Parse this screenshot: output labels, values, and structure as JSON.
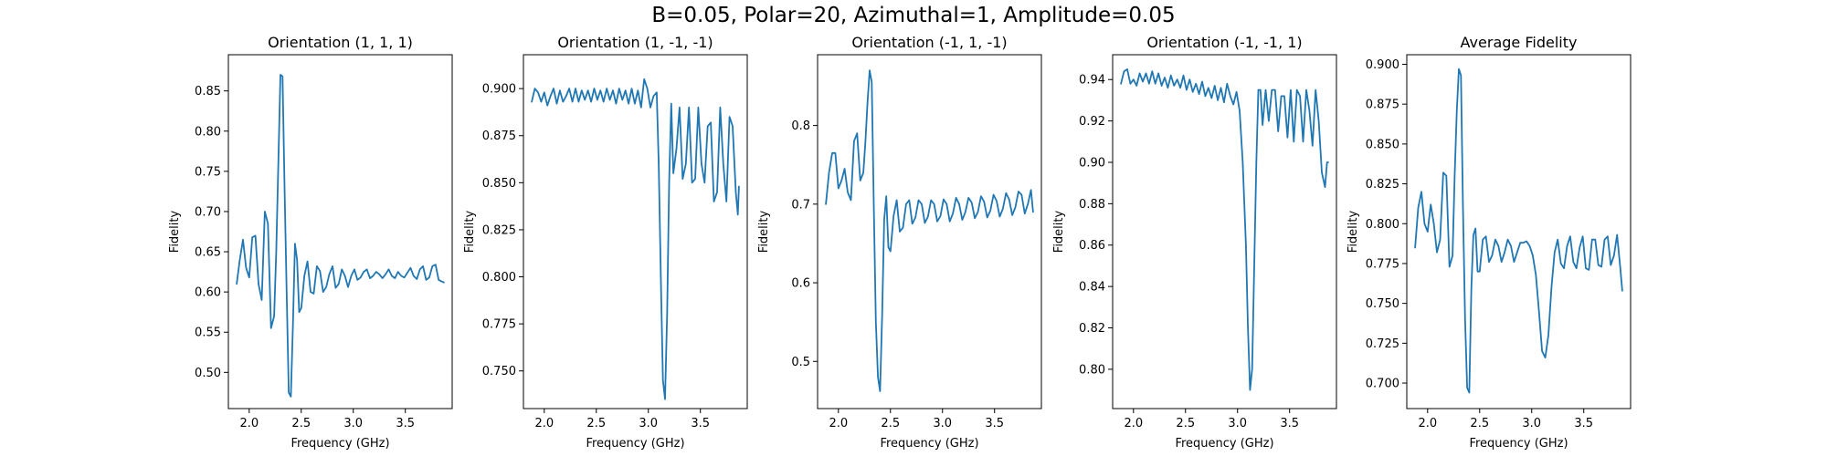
{
  "figure": {
    "suptitle": "B=0.05, Polar=20, Azimuthal=1, Amplitude=0.05",
    "line_color": "#1f77b4"
  },
  "chart_data": [
    {
      "type": "line",
      "title": "Orientation (1, 1, 1)",
      "xlabel": "Frequency (GHz)",
      "ylabel": "Fidelity",
      "xlim": [
        1.8,
        3.95
      ],
      "ylim": [
        0.455,
        0.895
      ],
      "xticks": [
        2.0,
        2.5,
        3.0,
        3.5
      ],
      "yticks": [
        0.5,
        0.55,
        0.6,
        0.65,
        0.7,
        0.75,
        0.8,
        0.85
      ],
      "tick_decimals": 2,
      "series": [
        {
          "x": [
            1.88,
            1.91,
            1.94,
            1.97,
            2.0,
            2.03,
            2.06,
            2.09,
            2.12,
            2.15,
            2.18,
            2.21,
            2.24,
            2.26,
            2.28,
            2.3,
            2.32,
            2.34,
            2.36,
            2.38,
            2.4,
            2.42,
            2.44,
            2.46,
            2.48,
            2.5,
            2.53,
            2.56,
            2.59,
            2.62,
            2.65,
            2.68,
            2.71,
            2.74,
            2.77,
            2.8,
            2.83,
            2.86,
            2.89,
            2.92,
            2.95,
            2.98,
            3.01,
            3.04,
            3.07,
            3.1,
            3.13,
            3.16,
            3.19,
            3.22,
            3.25,
            3.28,
            3.31,
            3.34,
            3.37,
            3.4,
            3.43,
            3.46,
            3.49,
            3.52,
            3.55,
            3.58,
            3.61,
            3.64,
            3.67,
            3.7,
            3.73,
            3.76,
            3.79,
            3.82,
            3.85,
            3.87
          ],
          "y": [
            0.61,
            0.64,
            0.665,
            0.63,
            0.618,
            0.668,
            0.67,
            0.61,
            0.59,
            0.7,
            0.685,
            0.555,
            0.57,
            0.65,
            0.76,
            0.87,
            0.868,
            0.73,
            0.6,
            0.475,
            0.47,
            0.56,
            0.66,
            0.64,
            0.575,
            0.58,
            0.62,
            0.638,
            0.6,
            0.598,
            0.632,
            0.626,
            0.6,
            0.606,
            0.622,
            0.632,
            0.605,
            0.61,
            0.628,
            0.62,
            0.606,
            0.62,
            0.628,
            0.615,
            0.618,
            0.625,
            0.628,
            0.617,
            0.62,
            0.625,
            0.622,
            0.617,
            0.622,
            0.628,
            0.62,
            0.617,
            0.625,
            0.62,
            0.618,
            0.624,
            0.63,
            0.62,
            0.616,
            0.628,
            0.632,
            0.615,
            0.618,
            0.632,
            0.634,
            0.615,
            0.613,
            0.612
          ]
        }
      ]
    },
    {
      "type": "line",
      "title": "Orientation (1, -1, -1)",
      "xlabel": "Frequency (GHz)",
      "ylabel": "Fidelity",
      "xlim": [
        1.8,
        3.95
      ],
      "ylim": [
        0.73,
        0.918
      ],
      "xticks": [
        2.0,
        2.5,
        3.0,
        3.5
      ],
      "yticks": [
        0.75,
        0.775,
        0.8,
        0.825,
        0.85,
        0.875,
        0.9
      ],
      "tick_decimals": 3,
      "series": [
        {
          "x": [
            1.88,
            1.91,
            1.94,
            1.97,
            2.0,
            2.03,
            2.06,
            2.09,
            2.12,
            2.15,
            2.18,
            2.21,
            2.24,
            2.27,
            2.3,
            2.33,
            2.36,
            2.39,
            2.42,
            2.45,
            2.48,
            2.51,
            2.54,
            2.57,
            2.6,
            2.63,
            2.66,
            2.69,
            2.72,
            2.75,
            2.78,
            2.81,
            2.84,
            2.87,
            2.9,
            2.93,
            2.96,
            2.99,
            3.02,
            3.05,
            3.08,
            3.1,
            3.12,
            3.14,
            3.16,
            3.18,
            3.2,
            3.22,
            3.24,
            3.27,
            3.3,
            3.33,
            3.36,
            3.39,
            3.42,
            3.45,
            3.48,
            3.51,
            3.54,
            3.57,
            3.6,
            3.63,
            3.66,
            3.69,
            3.72,
            3.75,
            3.78,
            3.81,
            3.84,
            3.86,
            3.87
          ],
          "y": [
            0.893,
            0.9,
            0.898,
            0.893,
            0.898,
            0.891,
            0.896,
            0.9,
            0.892,
            0.899,
            0.893,
            0.896,
            0.9,
            0.893,
            0.9,
            0.893,
            0.899,
            0.894,
            0.899,
            0.893,
            0.9,
            0.894,
            0.899,
            0.893,
            0.9,
            0.894,
            0.899,
            0.892,
            0.9,
            0.894,
            0.899,
            0.892,
            0.9,
            0.892,
            0.899,
            0.89,
            0.905,
            0.9,
            0.89,
            0.896,
            0.898,
            0.86,
            0.8,
            0.745,
            0.735,
            0.78,
            0.85,
            0.892,
            0.855,
            0.868,
            0.89,
            0.852,
            0.86,
            0.89,
            0.85,
            0.852,
            0.89,
            0.86,
            0.85,
            0.88,
            0.882,
            0.84,
            0.845,
            0.89,
            0.86,
            0.84,
            0.885,
            0.88,
            0.845,
            0.833,
            0.848
          ]
        }
      ]
    },
    {
      "type": "line",
      "title": "Orientation (-1, 1, -1)",
      "xlabel": "Frequency (GHz)",
      "ylabel": "Fidelity",
      "xlim": [
        1.8,
        3.95
      ],
      "ylim": [
        0.44,
        0.89
      ],
      "xticks": [
        2.0,
        2.5,
        3.0,
        3.5
      ],
      "yticks": [
        0.5,
        0.6,
        0.7,
        0.8
      ],
      "tick_decimals": 1,
      "series": [
        {
          "x": [
            1.88,
            1.91,
            1.94,
            1.97,
            2.0,
            2.03,
            2.06,
            2.09,
            2.12,
            2.15,
            2.18,
            2.21,
            2.24,
            2.26,
            2.28,
            2.3,
            2.32,
            2.34,
            2.36,
            2.38,
            2.4,
            2.42,
            2.44,
            2.46,
            2.48,
            2.5,
            2.53,
            2.56,
            2.59,
            2.62,
            2.65,
            2.68,
            2.71,
            2.74,
            2.77,
            2.8,
            2.83,
            2.86,
            2.89,
            2.92,
            2.95,
            2.98,
            3.01,
            3.04,
            3.07,
            3.1,
            3.13,
            3.16,
            3.19,
            3.22,
            3.25,
            3.28,
            3.31,
            3.34,
            3.37,
            3.4,
            3.43,
            3.46,
            3.49,
            3.52,
            3.55,
            3.58,
            3.61,
            3.64,
            3.67,
            3.7,
            3.73,
            3.76,
            3.79,
            3.82,
            3.85,
            3.87
          ],
          "y": [
            0.7,
            0.74,
            0.765,
            0.765,
            0.72,
            0.73,
            0.745,
            0.715,
            0.705,
            0.78,
            0.79,
            0.73,
            0.74,
            0.78,
            0.83,
            0.87,
            0.855,
            0.7,
            0.55,
            0.48,
            0.462,
            0.56,
            0.68,
            0.71,
            0.645,
            0.64,
            0.685,
            0.705,
            0.665,
            0.67,
            0.7,
            0.705,
            0.675,
            0.683,
            0.705,
            0.7,
            0.676,
            0.684,
            0.705,
            0.7,
            0.678,
            0.685,
            0.706,
            0.7,
            0.678,
            0.688,
            0.708,
            0.7,
            0.68,
            0.69,
            0.708,
            0.702,
            0.682,
            0.69,
            0.71,
            0.703,
            0.683,
            0.692,
            0.712,
            0.704,
            0.684,
            0.694,
            0.714,
            0.706,
            0.686,
            0.696,
            0.716,
            0.712,
            0.688,
            0.7,
            0.718,
            0.69
          ]
        }
      ]
    },
    {
      "type": "line",
      "title": "Orientation (-1, -1, 1)",
      "xlabel": "Frequency (GHz)",
      "ylabel": "Fidelity",
      "xlim": [
        1.8,
        3.95
      ],
      "ylim": [
        0.781,
        0.952
      ],
      "xticks": [
        2.0,
        2.5,
        3.0,
        3.5
      ],
      "yticks": [
        0.8,
        0.82,
        0.84,
        0.86,
        0.88,
        0.9,
        0.92,
        0.94
      ],
      "tick_decimals": 2,
      "series": [
        {
          "x": [
            1.88,
            1.91,
            1.94,
            1.97,
            2.0,
            2.03,
            2.06,
            2.09,
            2.12,
            2.15,
            2.18,
            2.21,
            2.24,
            2.27,
            2.3,
            2.33,
            2.36,
            2.39,
            2.42,
            2.45,
            2.48,
            2.51,
            2.54,
            2.57,
            2.6,
            2.63,
            2.66,
            2.69,
            2.72,
            2.75,
            2.78,
            2.81,
            2.84,
            2.87,
            2.9,
            2.93,
            2.96,
            2.99,
            3.02,
            3.05,
            3.08,
            3.1,
            3.12,
            3.14,
            3.16,
            3.18,
            3.2,
            3.22,
            3.24,
            3.27,
            3.3,
            3.33,
            3.36,
            3.39,
            3.42,
            3.45,
            3.48,
            3.51,
            3.54,
            3.57,
            3.6,
            3.63,
            3.66,
            3.69,
            3.72,
            3.75,
            3.78,
            3.81,
            3.84,
            3.86,
            3.87
          ],
          "y": [
            0.938,
            0.944,
            0.945,
            0.938,
            0.94,
            0.937,
            0.943,
            0.939,
            0.943,
            0.938,
            0.944,
            0.938,
            0.943,
            0.937,
            0.941,
            0.936,
            0.942,
            0.937,
            0.94,
            0.936,
            0.942,
            0.935,
            0.94,
            0.934,
            0.938,
            0.933,
            0.939,
            0.932,
            0.936,
            0.931,
            0.937,
            0.93,
            0.936,
            0.929,
            0.938,
            0.932,
            0.928,
            0.934,
            0.925,
            0.9,
            0.86,
            0.82,
            0.79,
            0.8,
            0.85,
            0.9,
            0.935,
            0.935,
            0.918,
            0.935,
            0.92,
            0.935,
            0.935,
            0.915,
            0.932,
            0.932,
            0.912,
            0.935,
            0.91,
            0.935,
            0.932,
            0.91,
            0.935,
            0.925,
            0.908,
            0.935,
            0.92,
            0.895,
            0.888,
            0.9,
            0.9
          ]
        }
      ]
    },
    {
      "type": "line",
      "title": "Average Fidelity",
      "xlabel": "Frequency (GHz)",
      "ylabel": "Fidelity",
      "xlim": [
        1.8,
        3.95
      ],
      "ylim": [
        0.684,
        0.906
      ],
      "xticks": [
        2.0,
        2.5,
        3.0,
        3.5
      ],
      "yticks": [
        0.7,
        0.725,
        0.75,
        0.775,
        0.8,
        0.825,
        0.85,
        0.875,
        0.9
      ],
      "tick_decimals": 3,
      "series": [
        {
          "x": [
            1.88,
            1.91,
            1.94,
            1.97,
            2.0,
            2.03,
            2.06,
            2.09,
            2.12,
            2.15,
            2.18,
            2.21,
            2.24,
            2.26,
            2.28,
            2.3,
            2.32,
            2.34,
            2.36,
            2.38,
            2.4,
            2.42,
            2.44,
            2.46,
            2.48,
            2.5,
            2.53,
            2.56,
            2.59,
            2.62,
            2.65,
            2.68,
            2.71,
            2.74,
            2.77,
            2.8,
            2.83,
            2.86,
            2.89,
            2.92,
            2.95,
            2.98,
            3.01,
            3.04,
            3.07,
            3.1,
            3.13,
            3.16,
            3.19,
            3.22,
            3.25,
            3.28,
            3.31,
            3.34,
            3.37,
            3.4,
            3.43,
            3.46,
            3.49,
            3.52,
            3.55,
            3.58,
            3.61,
            3.64,
            3.67,
            3.7,
            3.73,
            3.76,
            3.79,
            3.82,
            3.85,
            3.87
          ],
          "y": [
            0.785,
            0.81,
            0.82,
            0.8,
            0.795,
            0.812,
            0.8,
            0.782,
            0.79,
            0.832,
            0.83,
            0.773,
            0.78,
            0.83,
            0.87,
            0.897,
            0.893,
            0.81,
            0.74,
            0.697,
            0.694,
            0.76,
            0.793,
            0.797,
            0.77,
            0.77,
            0.79,
            0.792,
            0.776,
            0.78,
            0.79,
            0.786,
            0.776,
            0.782,
            0.79,
            0.786,
            0.776,
            0.782,
            0.788,
            0.788,
            0.789,
            0.786,
            0.78,
            0.768,
            0.745,
            0.72,
            0.716,
            0.73,
            0.76,
            0.782,
            0.79,
            0.775,
            0.772,
            0.786,
            0.792,
            0.776,
            0.772,
            0.785,
            0.792,
            0.772,
            0.771,
            0.79,
            0.79,
            0.774,
            0.773,
            0.79,
            0.792,
            0.774,
            0.78,
            0.793,
            0.773,
            0.758
          ]
        }
      ]
    }
  ]
}
